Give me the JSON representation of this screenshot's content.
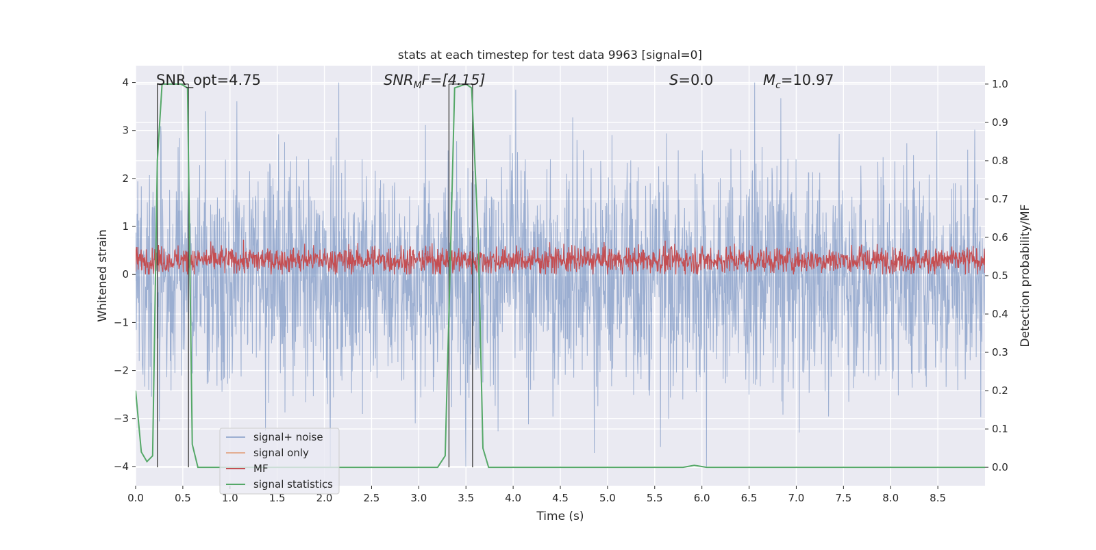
{
  "chart_data": {
    "type": "line",
    "title": "stats at each timestep for test data 9963 [signal=0]",
    "xlabel": "Time (s)",
    "ylabel_left": "Whitened strain",
    "ylabel_right": "Detection probability/MF",
    "xlim": [
      0.0,
      9.0
    ],
    "ylim_left": [
      -4.4,
      4.35
    ],
    "ylim_right": [
      -0.048,
      1.048
    ],
    "x_ticks": [
      "0.0",
      "0.5",
      "1.0",
      "1.5",
      "2.0",
      "2.5",
      "3.0",
      "3.5",
      "4.0",
      "4.5",
      "5.0",
      "5.5",
      "6.0",
      "6.5",
      "7.0",
      "7.5",
      "8.0",
      "8.5"
    ],
    "y_ticks_left": [
      "−4",
      "−3",
      "−2",
      "−1",
      "0",
      "1",
      "2",
      "3",
      "4"
    ],
    "y_ticks_right": [
      "0.0",
      "0.1",
      "0.2",
      "0.3",
      "0.4",
      "0.5",
      "0.6",
      "0.7",
      "0.8",
      "0.9",
      "1.0"
    ],
    "grid": true,
    "legend_position": "lower-left",
    "annotations": {
      "snr_opt": "SNR_opt=4.75",
      "snr_mf_base": "SNR",
      "snr_mf_sub": "M",
      "snr_mf_rest": "F=[4.15]",
      "s_base": "S",
      "s_rest": "=0.0",
      "mc_base": "M",
      "mc_sub": "c",
      "mc_rest": "=10.97"
    },
    "detection_windows": [
      [
        0.23,
        0.56
      ],
      [
        3.32,
        3.57
      ]
    ],
    "series": [
      {
        "name": "signal+ noise",
        "color": "#4c72b0",
        "note_type": "noise",
        "amplitude_range": [
          -4.0,
          4.0
        ]
      },
      {
        "name": "signal only",
        "color": "#dd8452",
        "note_type": "empty"
      },
      {
        "name": "MF",
        "color": "#c44e52",
        "note_type": "mf",
        "amplitude_range": [
          0.0,
          0.8
        ]
      },
      {
        "name": "signal statistics",
        "color": "#55a868",
        "axis": "right",
        "x": [
          0.0,
          0.06,
          0.12,
          0.18,
          0.23,
          0.28,
          0.33,
          0.4,
          0.48,
          0.55,
          0.6,
          0.66,
          0.72,
          3.2,
          3.28,
          3.33,
          3.38,
          3.5,
          3.56,
          3.63,
          3.68,
          3.74,
          5.8,
          5.92,
          6.05,
          9.0
        ],
        "y": [
          0.2,
          0.04,
          0.015,
          0.03,
          0.8,
          1.0,
          1.0,
          1.0,
          1.0,
          0.99,
          0.06,
          0.0,
          0.0,
          0.0,
          0.03,
          0.5,
          0.99,
          1.0,
          0.99,
          0.6,
          0.05,
          0.0,
          0.0,
          0.005,
          0.0,
          0.0
        ]
      }
    ]
  }
}
